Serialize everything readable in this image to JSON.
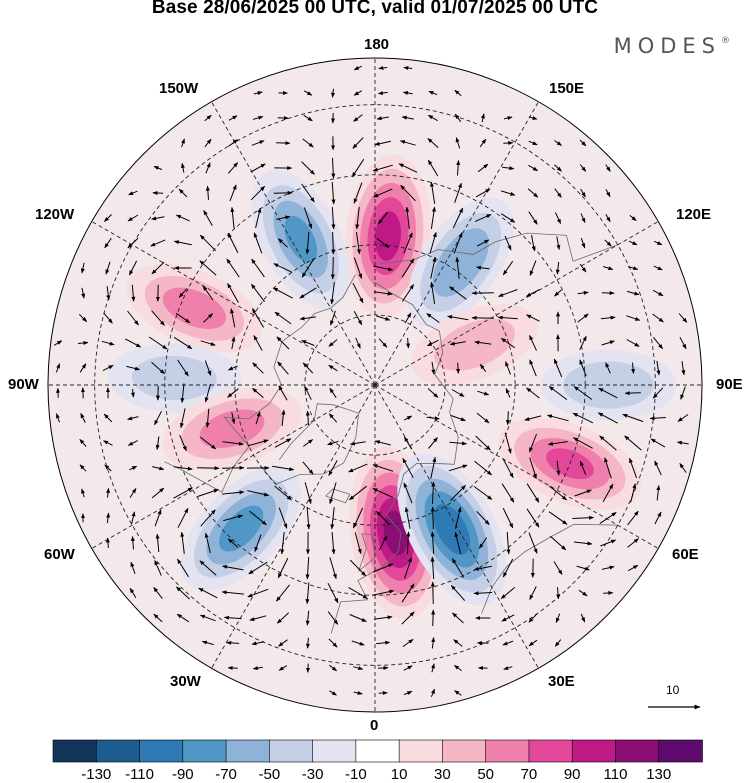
{
  "title": "Base 28/06/2025 00 UTC, valid 01/07/2025 00 UTC",
  "brand": "MODES",
  "brand_mark": "®",
  "longitude_labels": {
    "top": "180",
    "bottom": "0",
    "left": "90W",
    "right": "90E",
    "upper_left_outer": "150W",
    "upper_left_inner": "120W",
    "upper_right_outer": "150E",
    "upper_right_inner": "120E",
    "lower_left_inner": "60W",
    "lower_left_outer": "30W",
    "lower_right_inner": "60E",
    "lower_right_outer": "30E"
  },
  "reference_vector": {
    "label": "10",
    "magnitude": 10
  },
  "colorbar": {
    "labels": [
      "-130",
      "-110",
      "-90",
      "-70",
      "-50",
      "-30",
      "-10",
      "10",
      "30",
      "50",
      "70",
      "90",
      "110",
      "130"
    ],
    "colors": [
      "#12355b",
      "#1c5d8f",
      "#2f7ab4",
      "#5197c6",
      "#8fb2d9",
      "#c5cfe6",
      "#e4e3f1",
      "#ffffff",
      "#f9dcdf",
      "#f5b6c6",
      "#ef80ab",
      "#e2479a",
      "#be1a86",
      "#8b0e74",
      "#5e0a6e"
    ]
  },
  "anomaly_centers": [
    {
      "lon": 175,
      "lat": 58,
      "value": 95,
      "color_class": "positive"
    },
    {
      "lon": -153,
      "lat": 55,
      "value": -70,
      "color_class": "negative"
    },
    {
      "lon": 145,
      "lat": 58,
      "value": -65,
      "color_class": "negative"
    },
    {
      "lon": -113,
      "lat": 48,
      "value": 55,
      "color_class": "positive"
    },
    {
      "lon": 112,
      "lat": 67,
      "value": 35,
      "color_class": "positive"
    },
    {
      "lon": 90,
      "lat": 40,
      "value": -40,
      "color_class": "negative"
    },
    {
      "lon": -92,
      "lat": 47,
      "value": -35,
      "color_class": "negative"
    },
    {
      "lon": -73,
      "lat": 58,
      "value": 55,
      "color_class": "positive"
    },
    {
      "lon": -43,
      "lat": 48,
      "value": -75,
      "color_class": "negative"
    },
    {
      "lon": 8,
      "lat": 58,
      "value": 115,
      "color_class": "positive"
    },
    {
      "lon": 28,
      "lat": 55,
      "value": -100,
      "color_class": "negative"
    },
    {
      "lon": 68,
      "lat": 45,
      "value": 70,
      "color_class": "positive"
    }
  ]
}
